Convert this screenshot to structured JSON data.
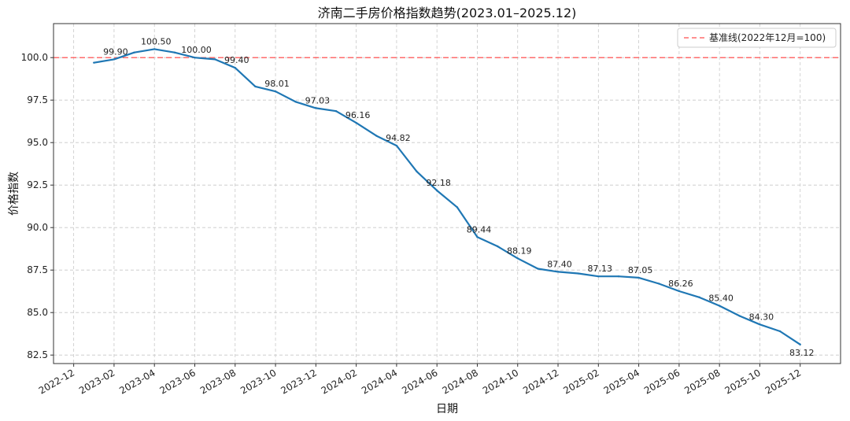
{
  "chart_data": {
    "type": "line",
    "title": "济南二手房价格指数趋势(2023.01–2025.12)",
    "xlabel": "日期",
    "ylabel": "价格指数",
    "ylim": [
      82.0,
      102.0
    ],
    "yticks": [
      82.5,
      85.0,
      87.5,
      90.0,
      92.5,
      95.0,
      97.5,
      100.0
    ],
    "ytick_labels": [
      "82.5",
      "85.0",
      "87.5",
      "90.0",
      "92.5",
      "95.0",
      "97.5",
      "100.0"
    ],
    "xlim": [
      "2022-11",
      "2026-02"
    ],
    "xticks": [
      "2022-12",
      "2023-02",
      "2023-04",
      "2023-06",
      "2023-08",
      "2023-10",
      "2023-12",
      "2024-02",
      "2024-04",
      "2024-06",
      "2024-08",
      "2024-10",
      "2024-12",
      "2025-02",
      "2025-04",
      "2025-06",
      "2025-08",
      "2025-10",
      "2025-12"
    ],
    "grid": true,
    "legend_position": "top-right",
    "series": [
      {
        "name": "价格指数",
        "color": "#1f77b4",
        "x": [
          "2023-01",
          "2023-02",
          "2023-03",
          "2023-04",
          "2023-05",
          "2023-06",
          "2023-07",
          "2023-08",
          "2023-09",
          "2023-10",
          "2023-11",
          "2023-12",
          "2024-01",
          "2024-02",
          "2024-03",
          "2024-04",
          "2024-05",
          "2024-06",
          "2024-07",
          "2024-08",
          "2024-09",
          "2024-10",
          "2024-11",
          "2024-12",
          "2025-01",
          "2025-02",
          "2025-03",
          "2025-04",
          "2025-05",
          "2025-06",
          "2025-07",
          "2025-08",
          "2025-09",
          "2025-10",
          "2025-11",
          "2025-12"
        ],
        "values": [
          99.7,
          99.9,
          100.3,
          100.5,
          100.3,
          100.0,
          99.9,
          99.4,
          98.3,
          98.01,
          97.4,
          97.03,
          96.85,
          96.16,
          95.4,
          94.82,
          93.3,
          92.18,
          91.2,
          89.44,
          88.9,
          88.19,
          87.58,
          87.4,
          87.3,
          87.13,
          87.13,
          87.05,
          86.7,
          86.26,
          85.9,
          85.4,
          84.8,
          84.3,
          83.9,
          83.12
        ]
      }
    ],
    "reference_line": {
      "label": "基准线(2022年12月=100)",
      "value": 100,
      "color": "#ff6b6b"
    },
    "annotations": [
      {
        "x": "2023-02",
        "y": 99.9,
        "text": "99.90"
      },
      {
        "x": "2023-04",
        "y": 100.5,
        "text": "100.50"
      },
      {
        "x": "2023-06",
        "y": 100.0,
        "text": "100.00"
      },
      {
        "x": "2023-08",
        "y": 99.4,
        "text": "99.40"
      },
      {
        "x": "2023-10",
        "y": 98.01,
        "text": "98.01"
      },
      {
        "x": "2023-12",
        "y": 97.03,
        "text": "97.03"
      },
      {
        "x": "2024-02",
        "y": 96.16,
        "text": "96.16"
      },
      {
        "x": "2024-04",
        "y": 94.82,
        "text": "94.82"
      },
      {
        "x": "2024-06",
        "y": 92.18,
        "text": "92.18"
      },
      {
        "x": "2024-08",
        "y": 89.44,
        "text": "89.44"
      },
      {
        "x": "2024-10",
        "y": 88.19,
        "text": "88.19"
      },
      {
        "x": "2024-12",
        "y": 87.4,
        "text": "87.40"
      },
      {
        "x": "2025-02",
        "y": 87.13,
        "text": "87.13"
      },
      {
        "x": "2025-04",
        "y": 87.05,
        "text": "87.05"
      },
      {
        "x": "2025-06",
        "y": 86.26,
        "text": "86.26"
      },
      {
        "x": "2025-08",
        "y": 85.4,
        "text": "85.40"
      },
      {
        "x": "2025-10",
        "y": 84.3,
        "text": "84.30"
      },
      {
        "x": "2025-12",
        "y": 83.12,
        "text": "83.12"
      }
    ]
  }
}
